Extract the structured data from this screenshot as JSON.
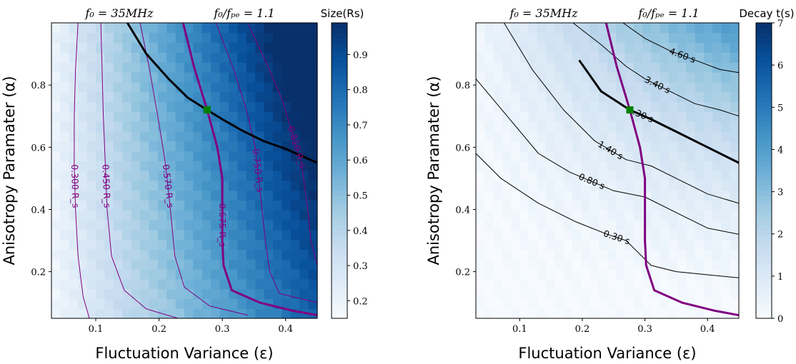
{
  "chart_data": [
    {
      "type": "heatmap",
      "panel": "left",
      "header_left": "f₀ = 35MHz",
      "header_right": "f₀/fₚₑ = 1.1",
      "xlabel": "Fluctuation Variance (ε)",
      "ylabel": "Anisotropy Paramater (α)",
      "xlim": [
        0.03,
        0.45
      ],
      "ylim": [
        0.05,
        1.0
      ],
      "xticks": [
        0.1,
        0.2,
        0.3,
        0.4
      ],
      "yticks": [
        0.2,
        0.4,
        0.6,
        0.8
      ],
      "colormap": "Blues",
      "colorbar": {
        "label": "Size(Rs)",
        "min": 0.15,
        "max": 0.99,
        "ticks": [
          0.2,
          0.3,
          0.4,
          0.5,
          0.6,
          0.7,
          0.8,
          0.9
        ]
      },
      "field": {
        "description_free": true,
        "bias": 0.13,
        "eps_coef": 1.55,
        "alpha_coef": 0.55
      },
      "contours": [
        {
          "value": 0.3,
          "label": "0.300 R_s",
          "color": "#800080",
          "width": 1,
          "points": [
            [
              0.072,
              1.0
            ],
            [
              0.068,
              0.85
            ],
            [
              0.066,
              0.7
            ],
            [
              0.066,
              0.55
            ],
            [
              0.068,
              0.4
            ],
            [
              0.072,
              0.25
            ],
            [
              0.08,
              0.12
            ],
            [
              0.09,
              0.05
            ]
          ]
        },
        {
          "value": 0.45,
          "label": "0.450 R_s",
          "color": "#800080",
          "width": 1,
          "points": [
            [
              0.108,
              1.0
            ],
            [
              0.11,
              0.85
            ],
            [
              0.112,
              0.7
            ],
            [
              0.115,
              0.55
            ],
            [
              0.118,
              0.4
            ],
            [
              0.125,
              0.25
            ],
            [
              0.145,
              0.14
            ],
            [
              0.18,
              0.08
            ],
            [
              0.23,
              0.05
            ]
          ]
        },
        {
          "value": 0.57,
          "label": "0.570 R_s",
          "color": "#800080",
          "width": 1,
          "points": [
            [
              0.17,
              1.0
            ],
            [
              0.185,
              0.85
            ],
            [
              0.198,
              0.7
            ],
            [
              0.21,
              0.55
            ],
            [
              0.218,
              0.4
            ],
            [
              0.225,
              0.25
            ],
            [
              0.24,
              0.15
            ],
            [
              0.28,
              0.09
            ],
            [
              0.34,
              0.06
            ]
          ]
        },
        {
          "value": 0.675,
          "label": "0.675 R_s",
          "color": "#800080",
          "width": 3,
          "points": [
            [
              0.238,
              1.0
            ],
            [
              0.255,
              0.86
            ],
            [
              0.276,
              0.72
            ],
            [
              0.292,
              0.6
            ],
            [
              0.3,
              0.5
            ],
            [
              0.3,
              0.4
            ],
            [
              0.3,
              0.3
            ],
            [
              0.302,
              0.22
            ],
            [
              0.315,
              0.14
            ],
            [
              0.36,
              0.1
            ],
            [
              0.41,
              0.075
            ],
            [
              0.45,
              0.06
            ]
          ]
        },
        {
          "value": 0.75,
          "label": "0.750 R_s",
          "color": "#800080",
          "width": 1,
          "points": [
            [
              0.29,
              1.0
            ],
            [
              0.318,
              0.85
            ],
            [
              0.338,
              0.72
            ],
            [
              0.352,
              0.6
            ],
            [
              0.36,
              0.45
            ],
            [
              0.368,
              0.3
            ],
            [
              0.375,
              0.2
            ],
            [
              0.39,
              0.13
            ],
            [
              0.45,
              0.1
            ]
          ]
        },
        {
          "value": 0.81,
          "label": "0.810 R_s",
          "color": "#800080",
          "width": 1,
          "points": [
            [
              0.34,
              1.0
            ],
            [
              0.372,
              0.86
            ],
            [
              0.395,
              0.75
            ],
            [
              0.41,
              0.65
            ],
            [
              0.425,
              0.55
            ],
            [
              0.435,
              0.4
            ],
            [
              0.44,
              0.3
            ],
            [
              0.45,
              0.22
            ]
          ]
        }
      ],
      "black_curve": [
        [
          0.15,
          1.0
        ],
        [
          0.18,
          0.9
        ],
        [
          0.215,
          0.82
        ],
        [
          0.245,
          0.76
        ],
        [
          0.276,
          0.72
        ],
        [
          0.3,
          0.69
        ],
        [
          0.33,
          0.655
        ],
        [
          0.365,
          0.62
        ],
        [
          0.4,
          0.595
        ],
        [
          0.45,
          0.55
        ]
      ],
      "marker": {
        "x": 0.276,
        "y": 0.72,
        "color": "#008000"
      }
    },
    {
      "type": "heatmap",
      "panel": "right",
      "header_left": "f₀ = 35MHz",
      "header_right": "f₀/fₚₑ = 1.1",
      "xlabel": "Fluctuation Variance (ε)",
      "ylabel": "Anisotropy Paramater (α)",
      "xlim": [
        0.03,
        0.45
      ],
      "ylim": [
        0.05,
        1.0
      ],
      "xticks": [
        0.1,
        0.2,
        0.3,
        0.4
      ],
      "yticks": [
        0.2,
        0.4,
        0.6,
        0.8
      ],
      "colormap": "Blues",
      "colorbar": {
        "label": "Decay t(s)",
        "min": 0,
        "max": 7,
        "ticks": [
          0,
          1,
          2,
          3,
          4,
          5,
          6,
          7
        ]
      },
      "field": {
        "description_free": true,
        "bias": 0.0,
        "eps_coef": 7.5,
        "alpha_coef": 5.5
      },
      "contours": [
        {
          "value": 0.3,
          "label": "0.30 s",
          "color": "#000000",
          "width": 1,
          "points": [
            [
              0.03,
              0.58
            ],
            [
              0.07,
              0.5
            ],
            [
              0.13,
              0.42
            ],
            [
              0.19,
              0.36
            ],
            [
              0.24,
              0.32
            ],
            [
              0.27,
              0.3
            ],
            [
              0.31,
              0.22
            ],
            [
              0.35,
              0.2
            ],
            [
              0.4,
              0.19
            ],
            [
              0.45,
              0.18
            ]
          ]
        },
        {
          "value": 0.8,
          "label": "0.80 s",
          "color": "#000000",
          "width": 1,
          "points": [
            [
              0.03,
              0.82
            ],
            [
              0.08,
              0.7
            ],
            [
              0.13,
              0.58
            ],
            [
              0.18,
              0.52
            ],
            [
              0.25,
              0.46
            ],
            [
              0.3,
              0.44
            ],
            [
              0.36,
              0.38
            ],
            [
              0.4,
              0.34
            ],
            [
              0.45,
              0.32
            ]
          ]
        },
        {
          "value": 1.4,
          "label": "1.40 s",
          "color": "#000000",
          "width": 1,
          "points": [
            [
              0.075,
              1.0
            ],
            [
              0.12,
              0.85
            ],
            [
              0.17,
              0.72
            ],
            [
              0.22,
              0.62
            ],
            [
              0.27,
              0.56
            ],
            [
              0.31,
              0.54
            ],
            [
              0.35,
              0.5
            ],
            [
              0.4,
              0.45
            ],
            [
              0.45,
              0.42
            ]
          ]
        },
        {
          "value": 2.3,
          "label": "2.30 s",
          "color": "#000000",
          "width": 3,
          "points": [
            [
              0.195,
              0.88
            ],
            [
              0.23,
              0.78
            ],
            [
              0.276,
              0.72
            ],
            [
              0.31,
              0.69
            ],
            [
              0.35,
              0.65
            ],
            [
              0.4,
              0.6
            ],
            [
              0.45,
              0.55
            ]
          ]
        },
        {
          "value": 3.4,
          "label": "3.40 s",
          "color": "#000000",
          "width": 1,
          "points": [
            [
              0.185,
              1.0
            ],
            [
              0.23,
              0.93
            ],
            [
              0.27,
              0.86
            ],
            [
              0.3,
              0.82
            ],
            [
              0.34,
              0.78
            ],
            [
              0.38,
              0.74
            ],
            [
              0.42,
              0.72
            ],
            [
              0.45,
              0.7
            ]
          ]
        },
        {
          "value": 4.6,
          "label": "4.60 s",
          "color": "#000000",
          "width": 1,
          "points": [
            [
              0.265,
              1.0
            ],
            [
              0.3,
              0.95
            ],
            [
              0.34,
              0.91
            ],
            [
              0.38,
              0.88
            ],
            [
              0.42,
              0.85
            ],
            [
              0.45,
              0.84
            ]
          ]
        }
      ],
      "purple_curve": [
        [
          0.238,
          1.0
        ],
        [
          0.255,
          0.86
        ],
        [
          0.276,
          0.72
        ],
        [
          0.292,
          0.6
        ],
        [
          0.3,
          0.5
        ],
        [
          0.3,
          0.4
        ],
        [
          0.3,
          0.3
        ],
        [
          0.302,
          0.22
        ],
        [
          0.315,
          0.14
        ],
        [
          0.36,
          0.1
        ],
        [
          0.41,
          0.075
        ],
        [
          0.45,
          0.06
        ]
      ],
      "marker": {
        "x": 0.276,
        "y": 0.72,
        "color": "#008000"
      }
    }
  ]
}
